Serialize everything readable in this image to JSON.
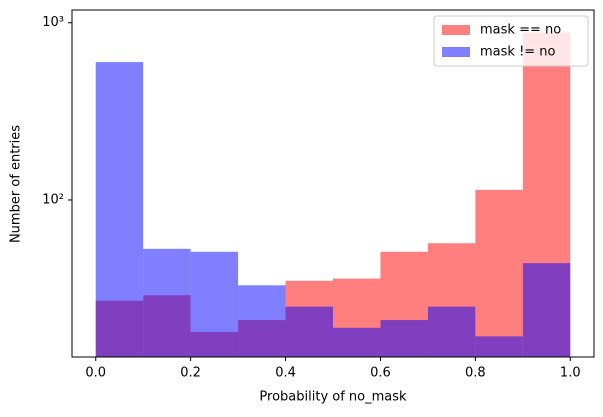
{
  "chart_data": {
    "type": "histogram",
    "xlabel": "Probability of no_mask",
    "ylabel": "Number of entries",
    "bins": [
      0.0,
      0.1,
      0.2,
      0.3,
      0.4,
      0.5,
      0.6,
      0.7,
      0.8,
      0.9,
      1.0
    ],
    "series": [
      {
        "name": "mask == no",
        "color": "#ff0000",
        "values": [
          27,
          29,
          18,
          21,
          35,
          36,
          51,
          57,
          114,
          880
        ]
      },
      {
        "name": "mask != no",
        "color": "#0000ff",
        "values": [
          600,
          53,
          51,
          33,
          25,
          19,
          21,
          25,
          17,
          44
        ]
      }
    ],
    "opacity": 0.5,
    "xlim": [
      -0.05,
      1.05
    ],
    "xticks": [
      {
        "value": 0,
        "label": "0.0"
      },
      0.2,
      0.4,
      0.6,
      0.8,
      {
        "value": 1,
        "label": "1.0"
      }
    ],
    "ylim": [
      13,
      1180
    ],
    "yticks": [
      {
        "value": 100,
        "label": "10²"
      },
      {
        "value": 1000,
        "label": "10³"
      }
    ],
    "log_y": true,
    "legend": "upper right"
  }
}
